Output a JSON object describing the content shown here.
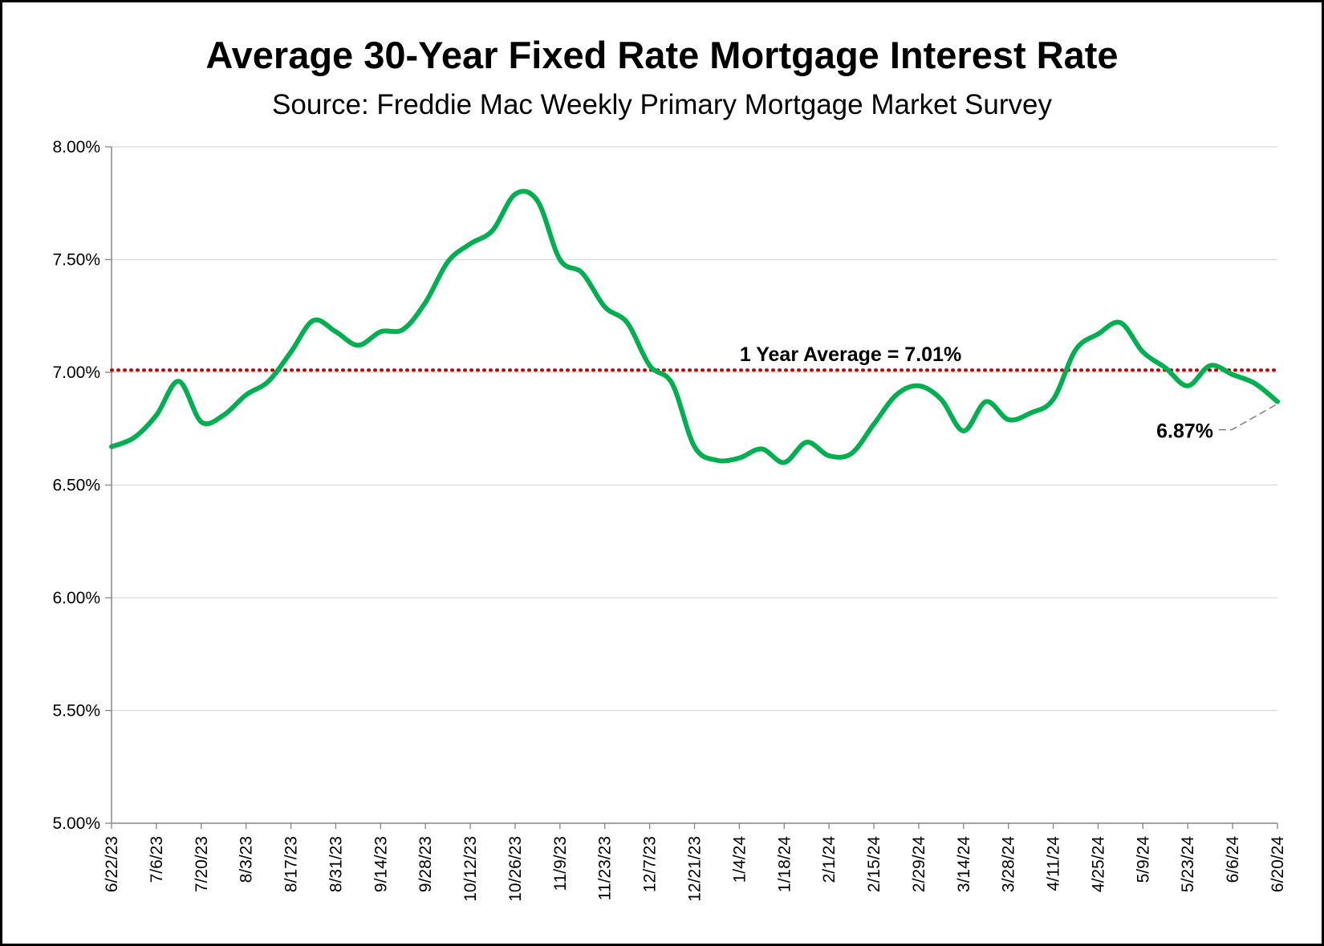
{
  "chart_data": {
    "type": "line",
    "title": "Average 30-Year Fixed Rate Mortgage Interest Rate",
    "subtitle": "Source: Freddie Mac Weekly Primary Mortgage Market Survey",
    "xlabel": "",
    "ylabel": "",
    "ylim": [
      5.0,
      8.0
    ],
    "y_ticks": [
      "5.00%",
      "5.50%",
      "6.00%",
      "6.50%",
      "7.00%",
      "7.50%",
      "8.00%"
    ],
    "y_tick_values": [
      5.0,
      5.5,
      6.0,
      6.5,
      7.0,
      7.5,
      8.0
    ],
    "x_tick_labels": [
      "6/22/23",
      "7/6/23",
      "7/20/23",
      "8/3/23",
      "8/17/23",
      "8/31/23",
      "9/14/23",
      "9/28/23",
      "10/12/23",
      "10/26/23",
      "11/9/23",
      "11/23/23",
      "12/7/23",
      "12/21/23",
      "1/4/24",
      "1/18/24",
      "2/1/24",
      "2/15/24",
      "2/29/24",
      "3/14/24",
      "3/28/24",
      "4/11/24",
      "4/25/24",
      "5/9/24",
      "5/23/24",
      "6/6/24",
      "6/20/24"
    ],
    "grid": true,
    "legend": "none",
    "series": [
      {
        "color": "#00b050",
        "x": [
          "6/22/23",
          "6/29/23",
          "7/6/23",
          "7/13/23",
          "7/20/23",
          "7/27/23",
          "8/3/23",
          "8/10/23",
          "8/17/23",
          "8/24/23",
          "8/31/23",
          "9/7/23",
          "9/14/23",
          "9/21/23",
          "9/28/23",
          "10/5/23",
          "10/12/23",
          "10/19/23",
          "10/26/23",
          "11/2/23",
          "11/9/23",
          "11/16/23",
          "11/23/23",
          "11/30/23",
          "12/7/23",
          "12/14/23",
          "12/21/23",
          "12/28/23",
          "1/4/24",
          "1/11/24",
          "1/18/24",
          "1/25/24",
          "2/1/24",
          "2/8/24",
          "2/15/24",
          "2/22/24",
          "2/29/24",
          "3/7/24",
          "3/14/24",
          "3/21/24",
          "3/28/24",
          "4/4/24",
          "4/11/24",
          "4/18/24",
          "4/25/24",
          "5/2/24",
          "5/9/24",
          "5/16/24",
          "5/23/24",
          "5/30/24",
          "6/6/24",
          "6/13/24",
          "6/20/24"
        ],
        "values": [
          6.67,
          6.71,
          6.81,
          6.96,
          6.78,
          6.81,
          6.9,
          6.96,
          7.09,
          7.23,
          7.18,
          7.12,
          7.18,
          7.19,
          7.31,
          7.49,
          7.57,
          7.63,
          7.79,
          7.76,
          7.5,
          7.44,
          7.29,
          7.22,
          7.03,
          6.95,
          6.67,
          6.61,
          6.62,
          6.66,
          6.6,
          6.69,
          6.63,
          6.64,
          6.77,
          6.9,
          6.94,
          6.88,
          6.74,
          6.87,
          6.79,
          6.82,
          6.88,
          7.1,
          7.17,
          7.22,
          7.09,
          7.02,
          6.94,
          7.03,
          6.99,
          6.95,
          6.87
        ]
      },
      {
        "name": "1 Year Average",
        "color": "#c00000",
        "style": "dotted",
        "constant": 7.01
      }
    ],
    "annotations": [
      {
        "text": "1 Year Average = 7.01%"
      },
      {
        "text": "6.87%"
      }
    ]
  }
}
